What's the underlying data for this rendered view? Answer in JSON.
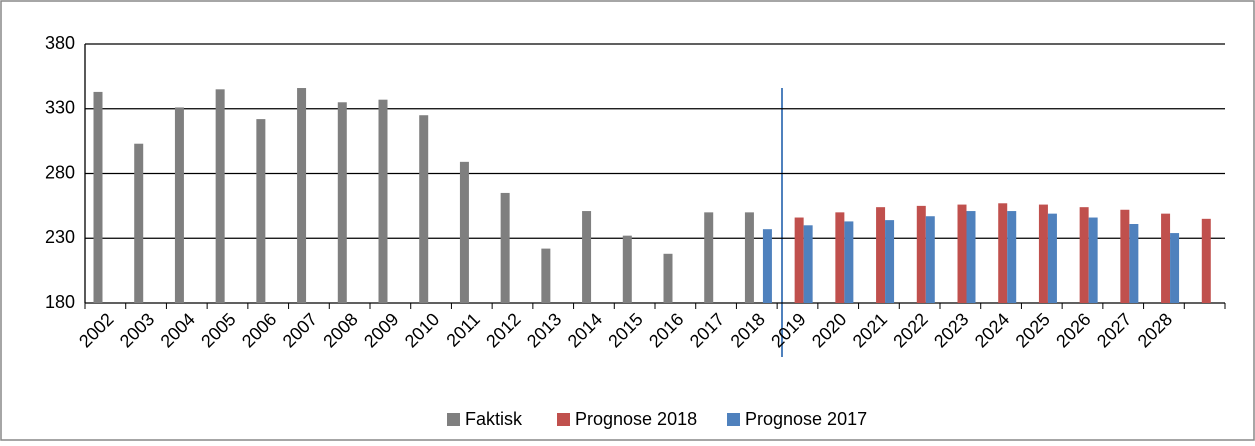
{
  "chart_data": {
    "type": "bar",
    "categories": [
      "2002",
      "2003",
      "2004",
      "2005",
      "2006",
      "2007",
      "2008",
      "2009",
      "2010",
      "2011",
      "2012",
      "2013",
      "2014",
      "2015",
      "2016",
      "2017",
      "2018",
      "2019",
      "2020",
      "2021",
      "2022",
      "2023",
      "2024",
      "2025",
      "2026",
      "2027",
      "2028",
      null
    ],
    "series": [
      {
        "name": "Faktisk",
        "color": "#7f7f7f",
        "values": [
          343,
          303,
          331,
          345,
          322,
          346,
          335,
          337,
          325,
          289,
          265,
          222,
          251,
          232,
          218,
          250,
          250,
          null,
          null,
          null,
          null,
          null,
          null,
          null,
          null,
          null,
          null,
          null
        ]
      },
      {
        "name": "Prognose 2018",
        "color": "#c0504d",
        "values": [
          null,
          null,
          null,
          null,
          null,
          null,
          null,
          null,
          null,
          null,
          null,
          null,
          null,
          null,
          null,
          null,
          null,
          246,
          250,
          254,
          255,
          256,
          257,
          256,
          254,
          252,
          249,
          245
        ]
      },
      {
        "name": "Prognose 2017",
        "color": "#4f81bd",
        "values": [
          null,
          null,
          null,
          null,
          null,
          null,
          null,
          null,
          null,
          null,
          null,
          null,
          null,
          null,
          null,
          null,
          237,
          240,
          243,
          244,
          247,
          251,
          251,
          249,
          246,
          241,
          234,
          null
        ]
      }
    ],
    "ylim": [
      180,
      380
    ],
    "yticks": [
      180,
      230,
      280,
      330,
      380
    ],
    "grid": true,
    "legend": "bottom"
  }
}
